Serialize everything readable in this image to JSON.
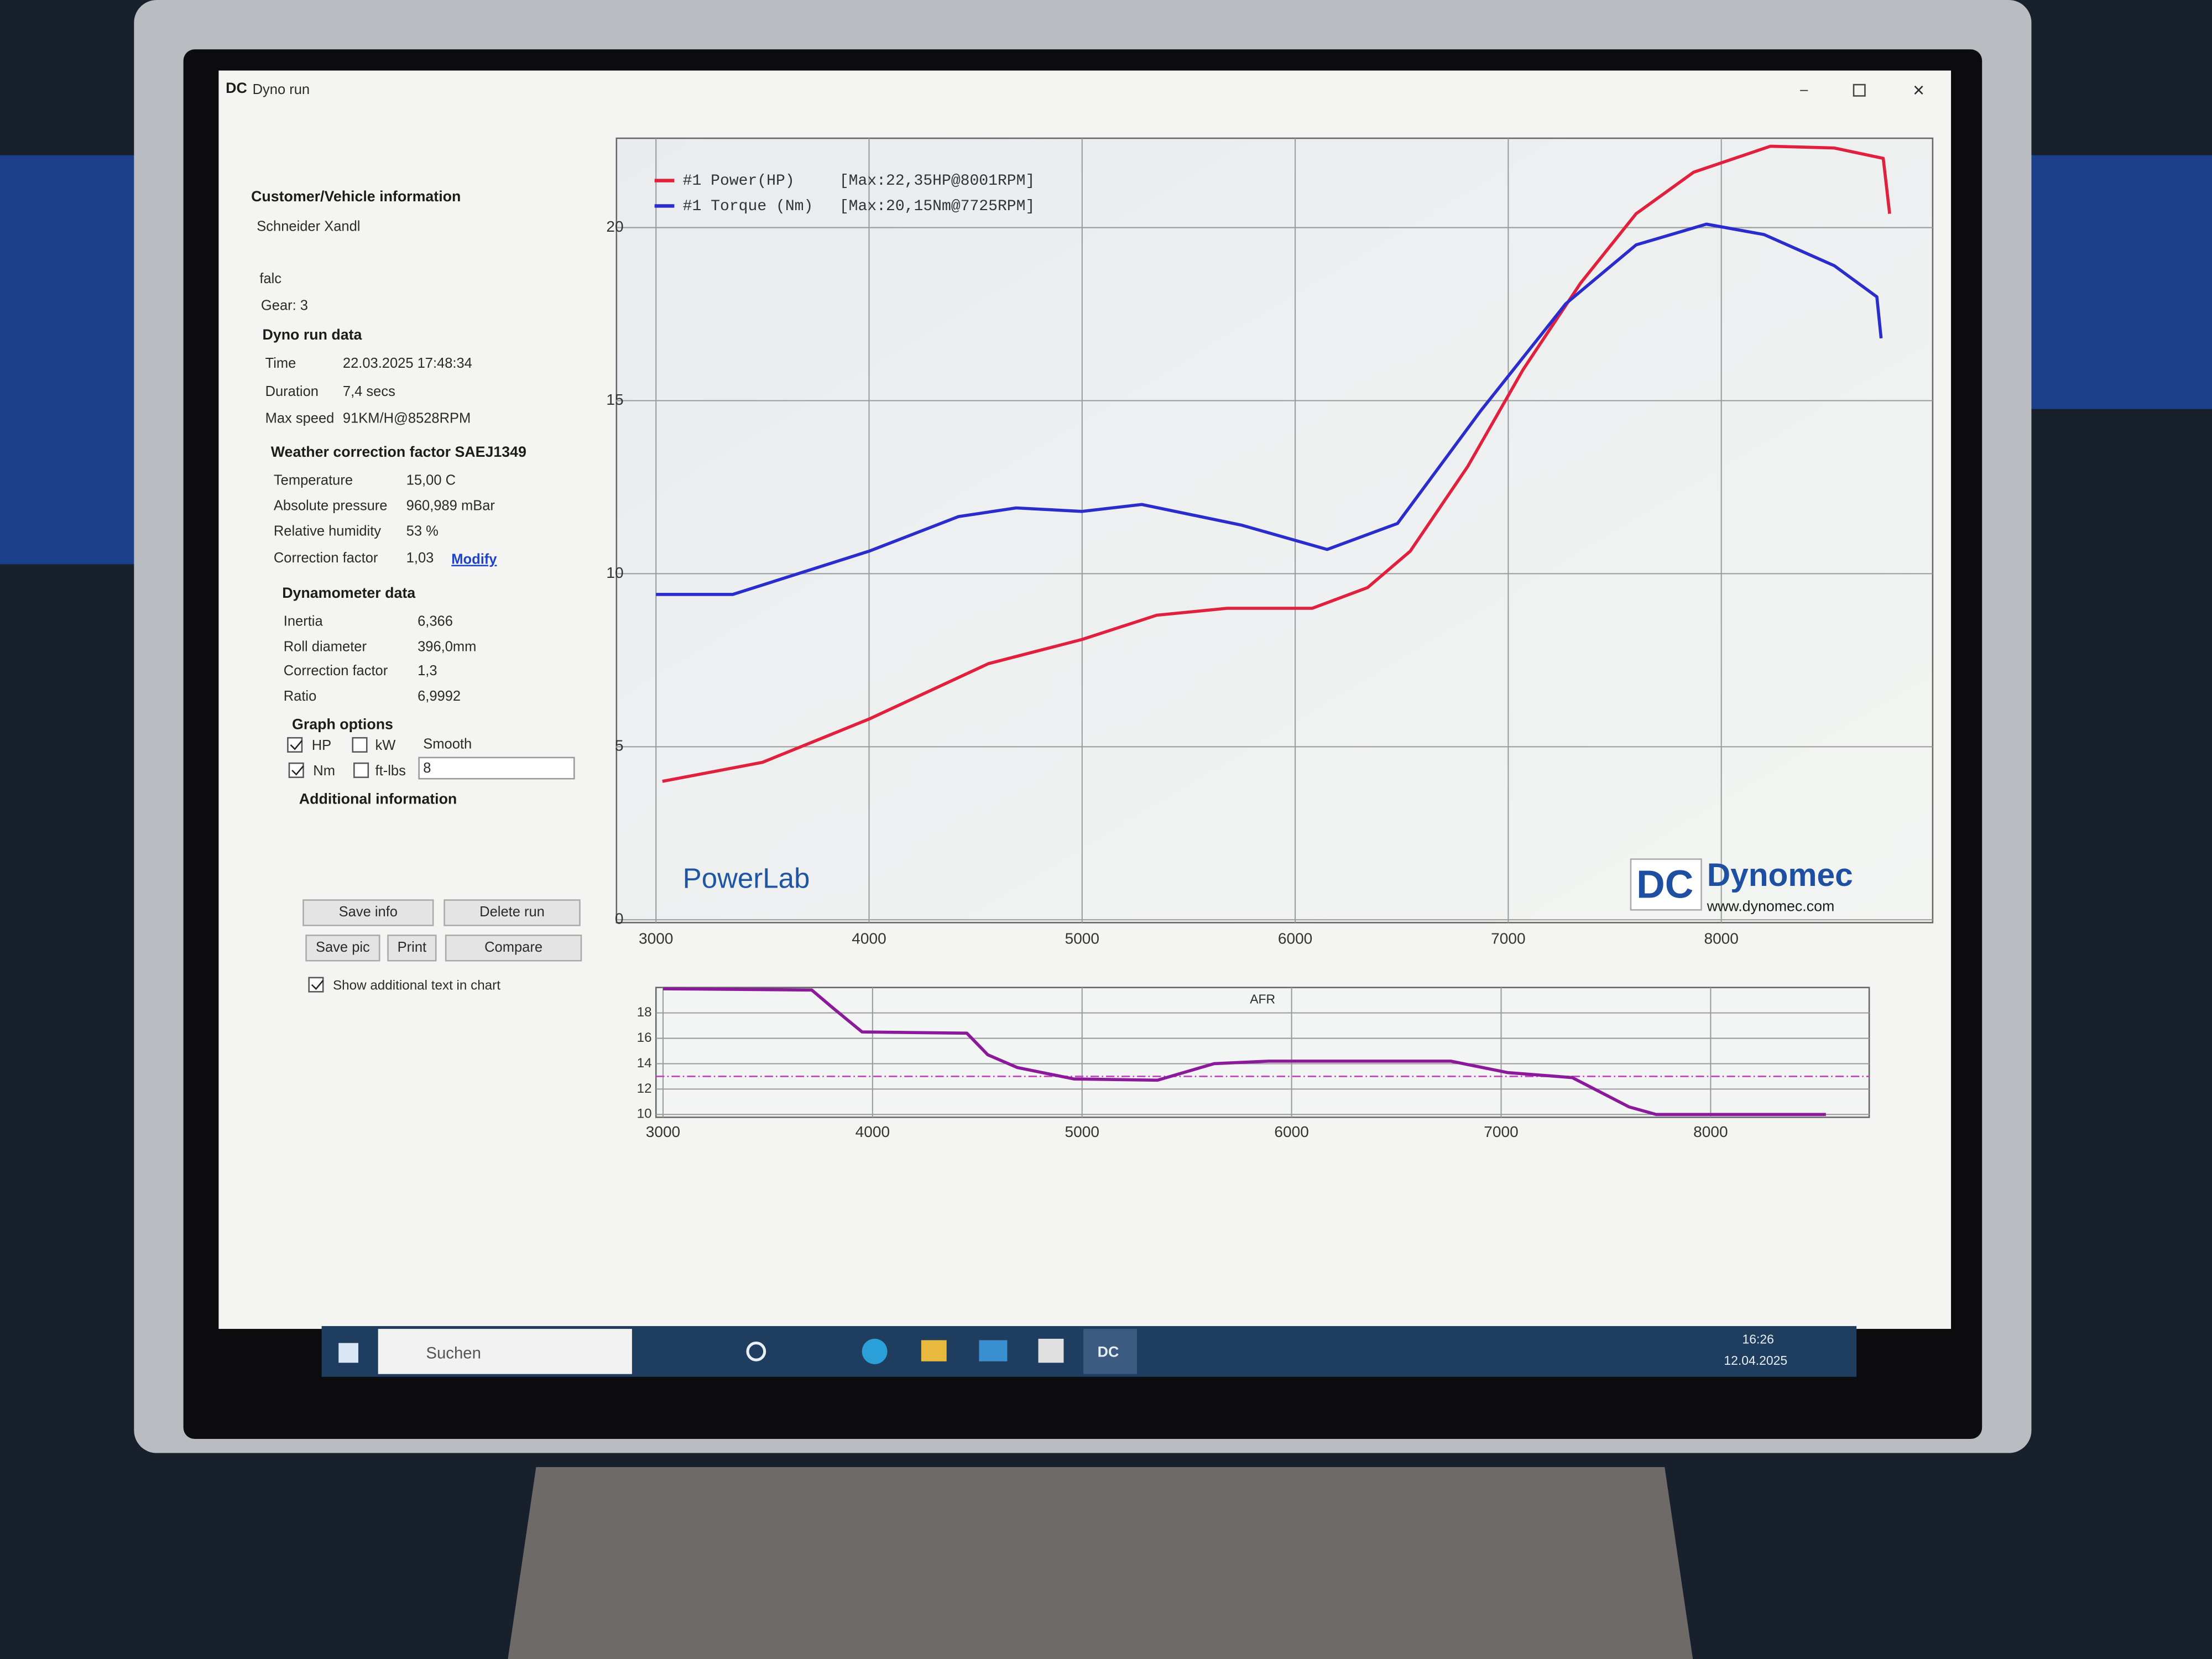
{
  "window": {
    "title": "Dyno run"
  },
  "panel": {
    "customer": {
      "heading": "Customer/Vehicle information",
      "name": "Schneider Xandl",
      "vehicle": "falc",
      "gear": "Gear: 3"
    },
    "run": {
      "heading": "Dyno run data",
      "rows": [
        [
          "Time",
          "22.03.2025 17:48:34"
        ],
        [
          "Duration",
          "7,4 secs"
        ],
        [
          "Max speed",
          "91KM/H@8528RPM"
        ]
      ]
    },
    "weather": {
      "heading": "Weather correction factor SAEJ1349",
      "rows": [
        [
          "Temperature",
          "15,00 C"
        ],
        [
          "Absolute pressure",
          "960,989 mBar"
        ],
        [
          "Relative humidity",
          "53 %"
        ],
        [
          "Correction factor",
          "1,03"
        ]
      ],
      "link": "Modify"
    },
    "dyno": {
      "heading": "Dynamometer data",
      "rows": [
        [
          "Inertia",
          "6,366"
        ],
        [
          "Roll diameter",
          "396,0mm"
        ],
        [
          "Correction factor",
          "1,3"
        ],
        [
          "Ratio",
          "6,9992"
        ]
      ]
    },
    "graph_options": {
      "heading": "Graph options",
      "hp": "HP",
      "kw": "kW",
      "smooth": "Smooth",
      "nm": "Nm",
      "ftlbs": "ft-lbs",
      "smooth_value": "8"
    },
    "additional": {
      "heading": "Additional information"
    },
    "buttons": [
      "Save info",
      "Delete run",
      "Save pic",
      "Print",
      "Compare"
    ],
    "show_text": "Show additional text in chart"
  },
  "chart_data": [
    {
      "type": "line",
      "xlim": [
        3000,
        8800
      ],
      "ylim": [
        0,
        22.5
      ],
      "xticks": [
        3000,
        4000,
        5000,
        6000,
        7000,
        8000
      ],
      "yticks": [
        0,
        5,
        10,
        15,
        20
      ],
      "grid": true,
      "series": [
        {
          "name": "#1 Power(HP)",
          "max_label": "[Max:22,35HP@8001RPM]",
          "color": "#e0203c",
          "x": [
            3030,
            3500,
            4000,
            4560,
            5000,
            5350,
            5680,
            6080,
            6340,
            6540,
            6810,
            7070,
            7340,
            7600,
            7870,
            8230,
            8530,
            8760,
            8790
          ],
          "values": [
            4.0,
            4.55,
            5.8,
            7.4,
            8.1,
            8.8,
            9.0,
            9.0,
            9.6,
            10.65,
            13.1,
            15.9,
            18.4,
            20.4,
            21.6,
            22.35,
            22.3,
            22.0,
            20.4
          ]
        },
        {
          "name": "#1 Torque (Nm)",
          "max_label": "[Max:20,15Nm@7725RPM]",
          "color": "#2a2ccc",
          "x": [
            3000,
            3360,
            4000,
            4420,
            4690,
            5000,
            5280,
            5750,
            6150,
            6480,
            6870,
            7270,
            7600,
            7930,
            8200,
            8530,
            8730,
            8750
          ],
          "values": [
            9.4,
            9.4,
            10.65,
            11.65,
            11.9,
            11.8,
            12.0,
            11.4,
            10.7,
            11.45,
            14.7,
            17.8,
            19.5,
            20.1,
            19.8,
            18.9,
            18.0,
            16.8
          ]
        }
      ]
    },
    {
      "type": "line",
      "title": "AFR",
      "xlim": [
        3000,
        8750
      ],
      "ylim": [
        10,
        20
      ],
      "xticks": [
        3000,
        4000,
        5000,
        6000,
        7000,
        8000
      ],
      "yticks": [
        10,
        12,
        14,
        16,
        18
      ],
      "grid": true,
      "reference": 13,
      "series": [
        {
          "color": "#8a1a9a",
          "x": [
            3000,
            3710,
            3810,
            3950,
            4450,
            4550,
            4690,
            4960,
            5360,
            5630,
            5890,
            6760,
            7030,
            7340,
            7610,
            7740,
            8550
          ],
          "values": [
            19.9,
            19.8,
            18.4,
            16.5,
            16.4,
            14.7,
            13.7,
            12.8,
            12.7,
            14.0,
            14.2,
            14.2,
            13.3,
            12.9,
            10.6,
            10.0,
            10.0
          ]
        }
      ]
    }
  ],
  "branding": {
    "app": "PowerLab",
    "brand": "Dynomec",
    "url": "www.dynomec.com"
  },
  "taskbar": {
    "search": "Suchen",
    "time": "16:26",
    "date": "12.04.2025"
  }
}
